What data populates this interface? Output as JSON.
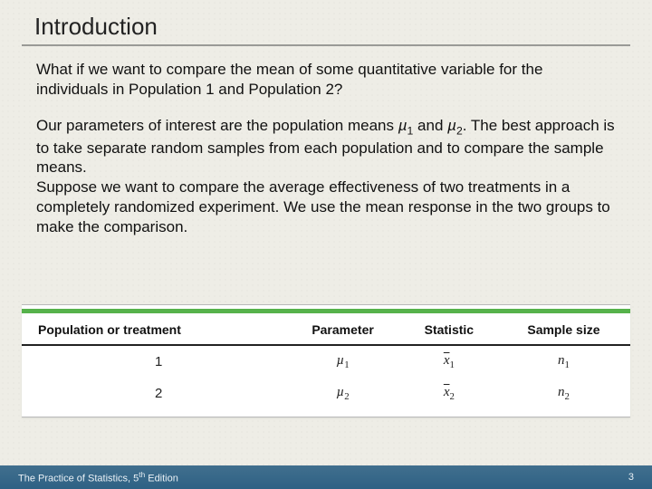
{
  "title": "Introduction",
  "paragraphs": {
    "p1": "What if we want to compare the mean of some quantitative variable for the individuals in Population 1 and Population 2?",
    "p2_pre": "Our parameters of interest are the population means ",
    "p2_mid": " and ",
    "p2_post": ". The best approach is to take separate random samples from each population and to compare the sample means.",
    "p3": "Suppose we want to compare the average effectiveness of two treatments in a completely randomized experiment. We use the mean response in the two groups to make the comparison."
  },
  "symbols": {
    "mu": "µ",
    "n": "n",
    "xbar": "x",
    "one": "1",
    "two": "2"
  },
  "table": {
    "headers": {
      "c1": "Population or treatment",
      "c2": "Parameter",
      "c3": "Statistic",
      "c4": "Sample size"
    },
    "rows": {
      "r1": {
        "pop": "1",
        "sub": "1"
      },
      "r2": {
        "pop": "2",
        "sub": "2"
      }
    }
  },
  "footer": {
    "book_pre": "The Practice of Statistics, 5",
    "book_sup": "th",
    "book_post": " Edition",
    "page": "3"
  },
  "colors": {
    "page_bg": "#eeede6",
    "green_bar": "#56b24b",
    "footer_top": "#416f8e",
    "footer_bottom": "#2e6184",
    "rule": "#9a9a96",
    "table_header_border": "#222222"
  }
}
